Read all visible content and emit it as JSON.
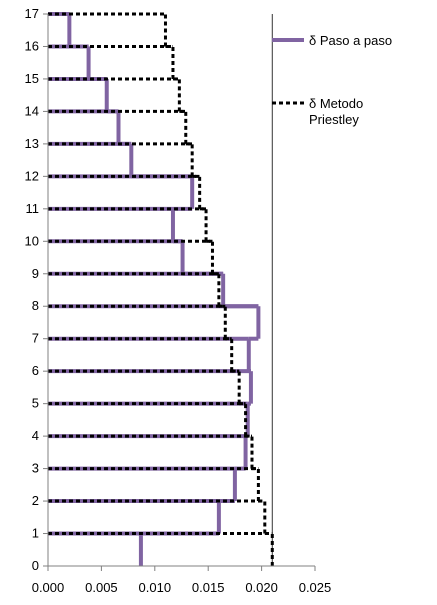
{
  "chart_data": {
    "type": "line",
    "title": "",
    "xlabel": "",
    "ylabel": "",
    "xlim": [
      0,
      0.025
    ],
    "ylim": [
      0,
      17
    ],
    "x_ticks": [
      "0.000",
      "0.005",
      "0.010",
      "0.015",
      "0.020",
      "0.025"
    ],
    "y_ticks": [
      "0",
      "1",
      "2",
      "3",
      "4",
      "5",
      "6",
      "7",
      "8",
      "9",
      "10",
      "11",
      "12",
      "13",
      "14",
      "15",
      "16",
      "17"
    ],
    "grid": false,
    "legend_position": "top-right",
    "reference_line_x": 0.021,
    "series": [
      {
        "name": "δ  Paso a paso",
        "style": "solid",
        "color": "#8064a2",
        "storey_drift": [
          {
            "story": 1,
            "value": 0.0087
          },
          {
            "story": 2,
            "value": 0.016
          },
          {
            "story": 3,
            "value": 0.0175
          },
          {
            "story": 4,
            "value": 0.0185
          },
          {
            "story": 5,
            "value": 0.0187
          },
          {
            "story": 6,
            "value": 0.019
          },
          {
            "story": 7,
            "value": 0.0188
          },
          {
            "story": 8,
            "value": 0.0197
          },
          {
            "story": 9,
            "value": 0.0164
          },
          {
            "story": 10,
            "value": 0.0126
          },
          {
            "story": 11,
            "value": 0.0117
          },
          {
            "story": 12,
            "value": 0.0135
          },
          {
            "story": 13,
            "value": 0.0078
          },
          {
            "story": 14,
            "value": 0.0066
          },
          {
            "story": 15,
            "value": 0.0055
          },
          {
            "story": 16,
            "value": 0.0038
          },
          {
            "story": 17,
            "value": 0.002
          }
        ]
      },
      {
        "name": "δ Metodo Priestley",
        "style": "dashed",
        "color": "#000000",
        "storey_drift": [
          {
            "story": 1,
            "value": 0.021
          },
          {
            "story": 2,
            "value": 0.0203
          },
          {
            "story": 3,
            "value": 0.0197
          },
          {
            "story": 4,
            "value": 0.0191
          },
          {
            "story": 5,
            "value": 0.0185
          },
          {
            "story": 6,
            "value": 0.0179
          },
          {
            "story": 7,
            "value": 0.0172
          },
          {
            "story": 8,
            "value": 0.0166
          },
          {
            "story": 9,
            "value": 0.016
          },
          {
            "story": 10,
            "value": 0.0154
          },
          {
            "story": 11,
            "value": 0.0148
          },
          {
            "story": 12,
            "value": 0.0142
          },
          {
            "story": 13,
            "value": 0.0135
          },
          {
            "story": 14,
            "value": 0.0129
          },
          {
            "story": 15,
            "value": 0.0123
          },
          {
            "story": 16,
            "value": 0.0117
          },
          {
            "story": 17,
            "value": 0.011
          }
        ]
      }
    ]
  }
}
